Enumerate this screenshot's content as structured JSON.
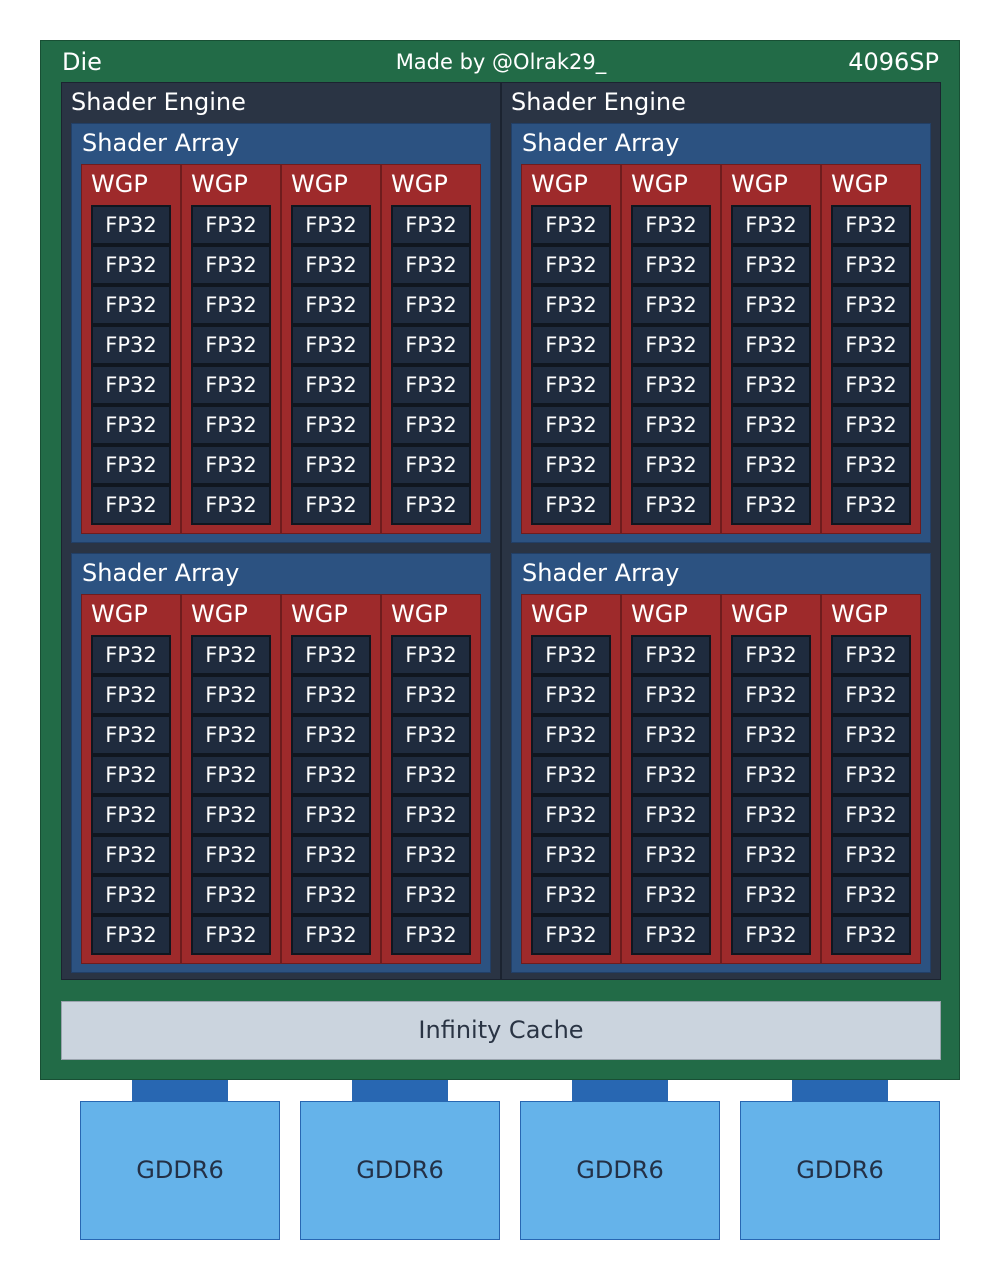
{
  "die": {
    "label": "Die",
    "credit": "Made by @Olrak29_",
    "sp_count": "4096SP",
    "colors": {
      "die": "#226b47",
      "shader_engine": "#2a3444",
      "shader_array": "#2c5281",
      "wgp": "#9e2a2b",
      "fp32": "#1f2b3e"
    }
  },
  "labels": {
    "shader_engine": "Shader Engine",
    "shader_array": "Shader Array",
    "wgp": "WGP",
    "fp32": "FP32"
  },
  "structure": {
    "shader_engines": 2,
    "shader_arrays_per_engine": 2,
    "wgps_per_array": 4,
    "fp32_per_wgp": 8
  },
  "cache": {
    "label": "Infinity Cache",
    "color": "#cbd4de"
  },
  "memory": {
    "modules": [
      "GDDR6",
      "GDDR6",
      "GDDR6",
      "GDDR6"
    ],
    "color": "#65b3ea",
    "connector_color": "#2867b2"
  }
}
